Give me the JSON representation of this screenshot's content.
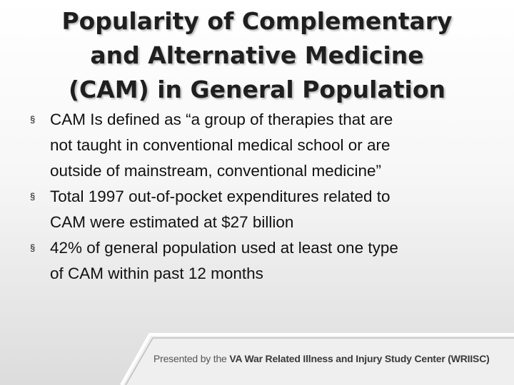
{
  "slide": {
    "title_lines": [
      "Popularity of Complementary",
      "and Alternative Medicine",
      "(CAM) in General Population"
    ],
    "bullets": [
      [
        "CAM Is defined as “a group of therapies that are",
        "not taught in conventional medical school or are",
        "outside of mainstream, conventional medicine”"
      ],
      [
        "Total 1997 out-of-pocket expenditures related to",
        "CAM were estimated at $27 billion"
      ],
      [
        "42% of general population used at least one type",
        "of  CAM  within past 12 months"
      ]
    ],
    "bullet_marker": "§"
  },
  "footer": {
    "presented_by": "Presented by the",
    "organization": "VA War Related Illness and Injury Study Center (WRIISC)"
  }
}
